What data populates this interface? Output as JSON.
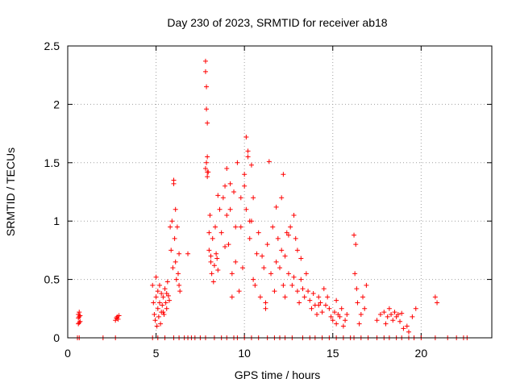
{
  "chart_data": {
    "type": "scatter",
    "title": "Day 230 of 2023, SRMTID for receiver ab18",
    "xlabel": "GPS time / hours",
    "ylabel": "SRMTID / TECUs",
    "xlim": [
      0,
      24
    ],
    "ylim": [
      0,
      2.5
    ],
    "x_ticks": [
      0,
      5,
      10,
      15,
      20
    ],
    "y_ticks": [
      0,
      0.5,
      1,
      1.5,
      2,
      2.5
    ],
    "x_tick_labels": [
      "0",
      "5",
      "10",
      "15",
      "20"
    ],
    "y_tick_labels": [
      "0",
      "0.5",
      "1",
      "1.5",
      "2",
      "2.5"
    ],
    "grid": true,
    "marker": "+",
    "series": [
      {
        "name": "SRMTID",
        "color": "#ff0000",
        "x": [
          0.6,
          0.6,
          0.6,
          0.65,
          0.65,
          0.65,
          0.7,
          0.7,
          2.7,
          2.75,
          2.8,
          2.85,
          2.9,
          4.8,
          4.85,
          4.9,
          4.95,
          5.0,
          5.0,
          5.05,
          5.1,
          5.1,
          5.15,
          5.2,
          5.2,
          5.25,
          5.3,
          5.3,
          5.35,
          5.4,
          5.45,
          5.5,
          5.55,
          5.6,
          5.6,
          5.65,
          5.7,
          5.75,
          5.8,
          5.85,
          5.9,
          5.95,
          6.0,
          6.05,
          6.1,
          6.1,
          6.15,
          6.2,
          6.25,
          6.3,
          6.3,
          6.35,
          6.8,
          7.8,
          7.8,
          7.85,
          7.85,
          7.9,
          7.9,
          7.8,
          7.85,
          7.9,
          7.95,
          8.0,
          8.0,
          8.05,
          8.1,
          8.1,
          8.15,
          8.2,
          8.25,
          8.3,
          8.35,
          8.4,
          8.45,
          8.5,
          8.6,
          8.7,
          8.8,
          8.9,
          9.0,
          9.0,
          9.1,
          9.2,
          9.3,
          9.3,
          9.4,
          9.5,
          9.5,
          9.6,
          9.7,
          9.8,
          9.9,
          10.0,
          10.0,
          10.1,
          10.1,
          10.2,
          10.2,
          10.3,
          10.4,
          10.5,
          10.5,
          10.6,
          10.7,
          10.8,
          10.9,
          11.0,
          11.1,
          11.2,
          11.3,
          11.4,
          11.5,
          11.6,
          11.7,
          11.8,
          11.9,
          12.0,
          12.1,
          12.1,
          12.2,
          12.2,
          12.3,
          12.3,
          12.4,
          12.5,
          12.6,
          12.7,
          12.8,
          12.9,
          13.0,
          13.0,
          13.1,
          13.2,
          13.3,
          13.4,
          13.5,
          13.6,
          13.7,
          13.8,
          13.9,
          14.0,
          14.1,
          14.2,
          14.3,
          14.4,
          14.5,
          14.6,
          14.7,
          14.8,
          14.9,
          15.0,
          15.1,
          15.2,
          15.3,
          15.4,
          15.5,
          15.6,
          15.7,
          15.8,
          16.2,
          16.25,
          16.3,
          16.35,
          16.4,
          16.5,
          16.6,
          16.7,
          16.8,
          16.9,
          17.5,
          17.7,
          17.9,
          18.0,
          18.1,
          18.2,
          18.3,
          18.4,
          18.5,
          18.6,
          18.7,
          18.8,
          18.9,
          19.0,
          19.2,
          19.3,
          19.5,
          19.7,
          20.8,
          20.9,
          8.5,
          9.2,
          9.8,
          10.4,
          11.2,
          12.5,
          13.2,
          14.2,
          6.0,
          5.4,
          10.3,
          7.9,
          8.9,
          11.8,
          12.8,
          15.2,
          0.55,
          0.65,
          2.0,
          2.7,
          4.8,
          5.1,
          5.5,
          6.0,
          6.3,
          6.6,
          6.8,
          7.0,
          7.2,
          7.5,
          7.8,
          8.3,
          8.7,
          9.0,
          9.4,
          9.6,
          10.0,
          10.4,
          10.8,
          11.3,
          11.7,
          12.0,
          12.3,
          12.7,
          13.3,
          13.7,
          14.0,
          14.4,
          14.8,
          15.2,
          15.6,
          16.0,
          16.2,
          16.6,
          17.0,
          17.5,
          17.9,
          18.2,
          18.6,
          18.9,
          19.3,
          19.6,
          20.0,
          20.8,
          21.5,
          22.0,
          22.4,
          22.6
        ],
        "y": [
          0.12,
          0.17,
          0.2,
          0.13,
          0.18,
          0.22,
          0.14,
          0.19,
          0.15,
          0.17,
          0.18,
          0.16,
          0.19,
          0.45,
          0.3,
          0.2,
          0.15,
          0.52,
          0.35,
          0.1,
          0.25,
          0.4,
          0.18,
          0.3,
          0.45,
          0.12,
          0.22,
          0.38,
          0.28,
          0.35,
          0.2,
          0.42,
          0.3,
          0.25,
          0.38,
          0.48,
          0.36,
          0.32,
          0.95,
          0.75,
          1.0,
          0.6,
          1.35,
          0.85,
          0.65,
          1.1,
          0.5,
          0.95,
          0.55,
          0.45,
          0.72,
          0.4,
          0.72,
          2.37,
          2.28,
          2.15,
          1.96,
          1.84,
          1.55,
          1.45,
          1.5,
          1.38,
          1.42,
          0.9,
          0.75,
          1.05,
          0.65,
          0.7,
          0.55,
          0.85,
          0.48,
          0.62,
          0.95,
          0.72,
          0.68,
          0.58,
          1.1,
          0.9,
          1.2,
          1.3,
          1.45,
          1.05,
          0.8,
          1.1,
          0.55,
          0.35,
          1.25,
          0.95,
          0.65,
          1.5,
          0.4,
          1.2,
          0.6,
          1.4,
          1.3,
          1.72,
          1.1,
          1.55,
          1.6,
          0.85,
          1.0,
          1.2,
          0.5,
          0.45,
          0.72,
          0.9,
          0.35,
          0.7,
          0.6,
          0.3,
          0.8,
          1.51,
          0.55,
          0.95,
          0.4,
          0.65,
          0.85,
          0.6,
          0.75,
          1.2,
          0.45,
          1.4,
          0.7,
          0.35,
          0.9,
          0.55,
          0.95,
          0.45,
          1.05,
          0.85,
          0.75,
          0.4,
          0.3,
          0.5,
          0.42,
          0.35,
          0.55,
          0.4,
          0.32,
          0.25,
          0.38,
          0.28,
          0.2,
          0.35,
          0.3,
          0.22,
          0.42,
          0.28,
          0.35,
          0.25,
          0.18,
          0.15,
          0.22,
          0.12,
          0.2,
          0.18,
          0.25,
          0.1,
          0.15,
          0.2,
          0.88,
          0.55,
          0.8,
          0.42,
          0.3,
          0.12,
          0.2,
          0.35,
          0.25,
          0.45,
          0.15,
          0.2,
          0.22,
          0.12,
          0.18,
          0.25,
          0.2,
          0.15,
          0.22,
          0.18,
          0.2,
          0.14,
          0.21,
          0.08,
          0.1,
          0.05,
          0.18,
          0.25,
          0.35,
          0.3,
          1.22,
          1.32,
          0.95,
          1.48,
          0.25,
          0.88,
          0.68,
          0.28,
          1.32,
          0.22,
          1.0,
          1.42,
          0.78,
          1.12,
          0.52,
          0.32,
          0,
          0,
          0,
          0,
          0,
          0,
          0,
          0,
          0,
          0,
          0,
          0,
          0,
          0,
          0,
          0,
          0,
          0,
          0,
          0,
          0,
          0,
          0,
          0,
          0,
          0,
          0,
          0,
          0,
          0,
          0,
          0,
          0,
          0,
          0,
          0,
          0,
          0,
          0,
          0,
          0,
          0,
          0,
          0,
          0,
          0,
          0,
          0,
          0,
          0,
          0,
          0
        ]
      }
    ]
  }
}
